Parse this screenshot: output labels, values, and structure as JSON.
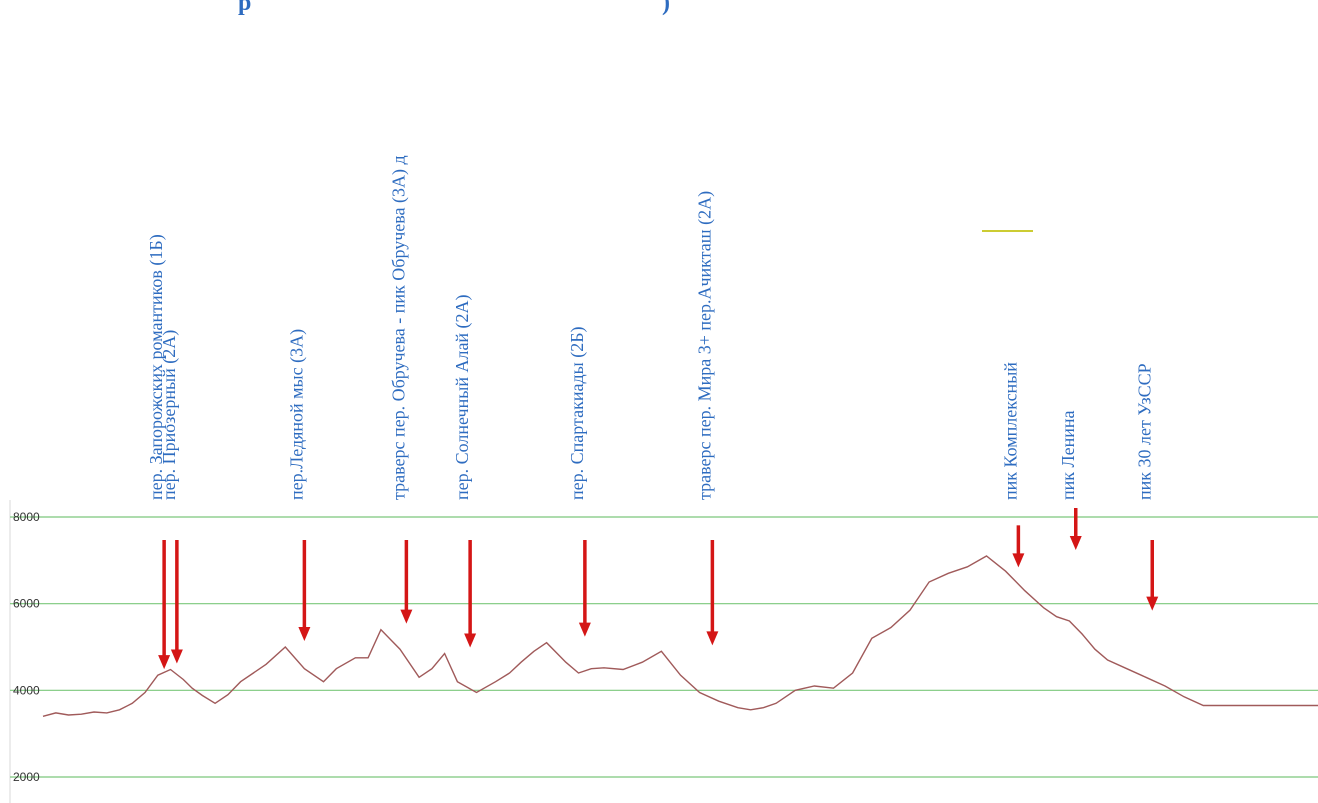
{
  "header": {
    "title_fragment": "р",
    "title_fragment_right": ")"
  },
  "chart_data": {
    "type": "line",
    "title": "",
    "xlabel": "",
    "ylabel": "",
    "ylim": [
      1700,
      8000
    ],
    "xlim": [
      0,
      100
    ],
    "grid": true,
    "yticks": [
      8000,
      6000,
      4000,
      2000
    ],
    "colors": {
      "line": "#a05a5a",
      "grid": "#7cc87c",
      "arrow": "#d41616",
      "label": "#2e6cc0",
      "stray": "#cccc33"
    },
    "series": [
      {
        "x": [
          0,
          1,
          2,
          3,
          4,
          5,
          6,
          7,
          8,
          9,
          10,
          11,
          11.7,
          12.5,
          13.5,
          14.5,
          15.5,
          16.5,
          17.5,
          19,
          20.5,
          22,
          23,
          24.5,
          25.5,
          26.5,
          28,
          29.5,
          30.5,
          31.5,
          32.5,
          34,
          35.5,
          36.6,
          37.5,
          38.5,
          39.5,
          41,
          42,
          43,
          44,
          45.5,
          47,
          48.5,
          50,
          51.5,
          53,
          54.5,
          55.5,
          56.5,
          57.5,
          59,
          60.5,
          62,
          63.5,
          65,
          66.5,
          68,
          69.5,
          71,
          72.5,
          74,
          75.5,
          77,
          78.5,
          79.5,
          80.5,
          81.5,
          82.5,
          83.5,
          85,
          86.5,
          88,
          89.5,
          91,
          92.5,
          94,
          95.5,
          97,
          98.5,
          100
        ],
        "values": [
          3400,
          3480,
          3430,
          3450,
          3500,
          3480,
          3550,
          3700,
          3950,
          4350,
          4480,
          4250,
          4050,
          3880,
          3700,
          3900,
          4200,
          4400,
          4600,
          5000,
          4500,
          4200,
          4500,
          4750,
          4750,
          5400,
          4950,
          4300,
          4500,
          4850,
          4200,
          3950,
          4200,
          4400,
          4650,
          4900,
          5100,
          4650,
          4400,
          4500,
          4520,
          4480,
          4650,
          4900,
          4350,
          3950,
          3750,
          3600,
          3550,
          3600,
          3700,
          4000,
          4100,
          4050,
          4400,
          5200,
          5450,
          5850,
          6500,
          6700,
          6850,
          7100,
          6750,
          6300,
          5900,
          5700,
          5600,
          5300,
          4950,
          4700,
          4500,
          4300,
          4100,
          3850,
          3650,
          3650,
          3650,
          3650,
          3650,
          3650,
          3650
        ]
      }
    ],
    "peaks": [
      {
        "label": "пер. Запорожских романтиков (1Б)",
        "x": 9.5,
        "y": 4350
      },
      {
        "label": "пер. Приозерный (2А)",
        "x": 10.5,
        "y": 4480
      },
      {
        "label": "пер.Ледяной мыс (3А)",
        "x": 20.5,
        "y": 5000
      },
      {
        "label": "траверс пер. Обручева - пик Обручева (3А) д",
        "x": 28.5,
        "y": 5400
      },
      {
        "label": "пер. Солнечный Алай (2А)",
        "x": 33.5,
        "y": 4850
      },
      {
        "label": "пер. Спартакиады (2Б)",
        "x": 42.5,
        "y": 5100
      },
      {
        "label": "траверс пер. Мира 3+ пер.Ачикташ (2А)",
        "x": 52.5,
        "y": 4900
      },
      {
        "label": "пик Комплексный",
        "x": 76.5,
        "y": 6700
      },
      {
        "label": "пик Ленина",
        "x": 81.0,
        "y": 7100
      },
      {
        "label": "пик 30 лет УзССР",
        "x": 87.0,
        "y": 5700
      }
    ]
  }
}
